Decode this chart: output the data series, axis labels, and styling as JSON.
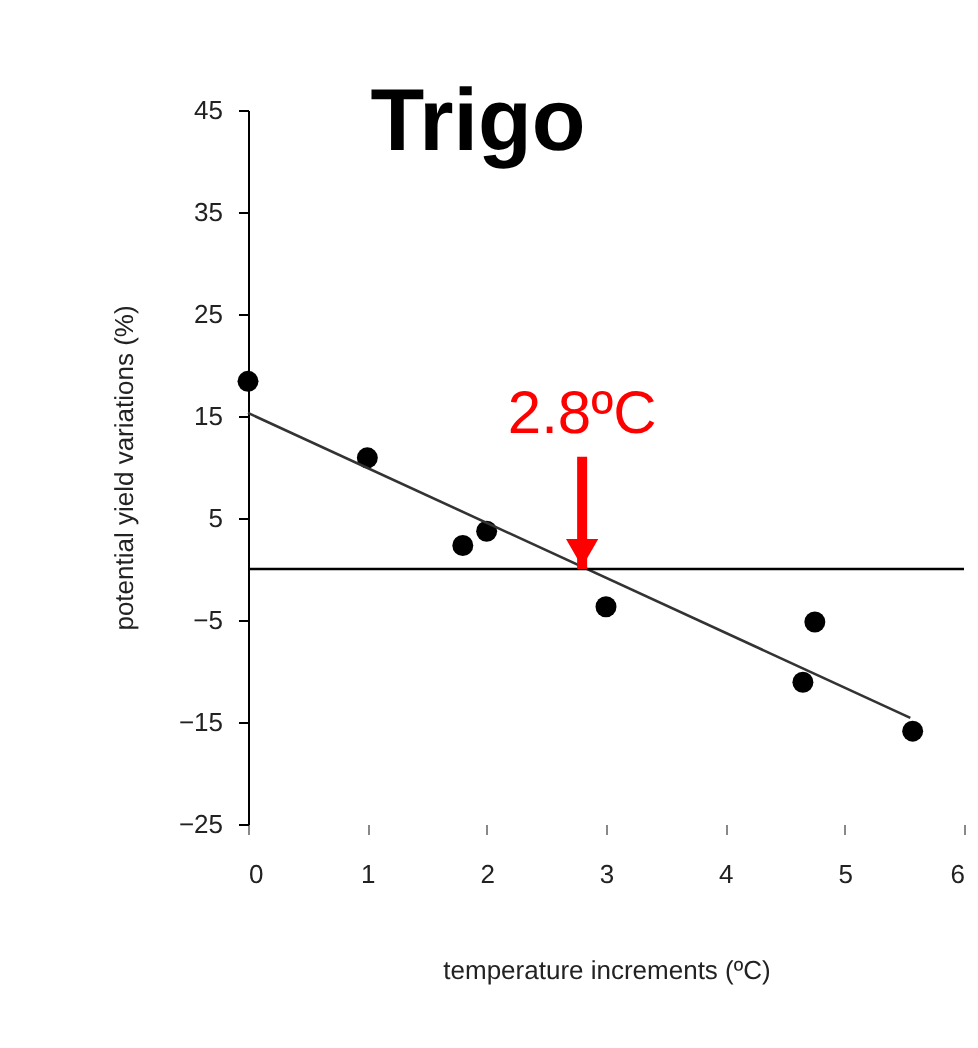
{
  "chart_data": {
    "type": "scatter",
    "title": "Trigo",
    "xlabel": "temperature increments (ºC)",
    "ylabel": "potential yield variations (%)",
    "xlim": [
      0,
      6
    ],
    "xticks": [
      0,
      1,
      2,
      3,
      4,
      5,
      6
    ],
    "ylim": [
      -25,
      45
    ],
    "yticks": [
      -25,
      -15,
      -5,
      5,
      15,
      25,
      35,
      45
    ],
    "grid": false,
    "series": [
      {
        "marker": "circle",
        "color": "#000000",
        "x": [
          0,
          1,
          1.8,
          2,
          3,
          4.65,
          4.75,
          5.57
        ],
        "values": [
          18.4,
          10.9,
          2.3,
          3.7,
          -3.7,
          -11.1,
          -5.2,
          -15.9
        ]
      },
      {
        "type": "line",
        "color": "#333333",
        "x": [
          0,
          5.55
        ],
        "values": [
          15.3,
          -14.6
        ]
      }
    ],
    "ref_lines": [
      {
        "axis": "y",
        "value": 0,
        "color": "#000000"
      }
    ],
    "annotations": [
      {
        "text": "2.8ºC",
        "x": 2.8,
        "y": 0
      }
    ]
  }
}
